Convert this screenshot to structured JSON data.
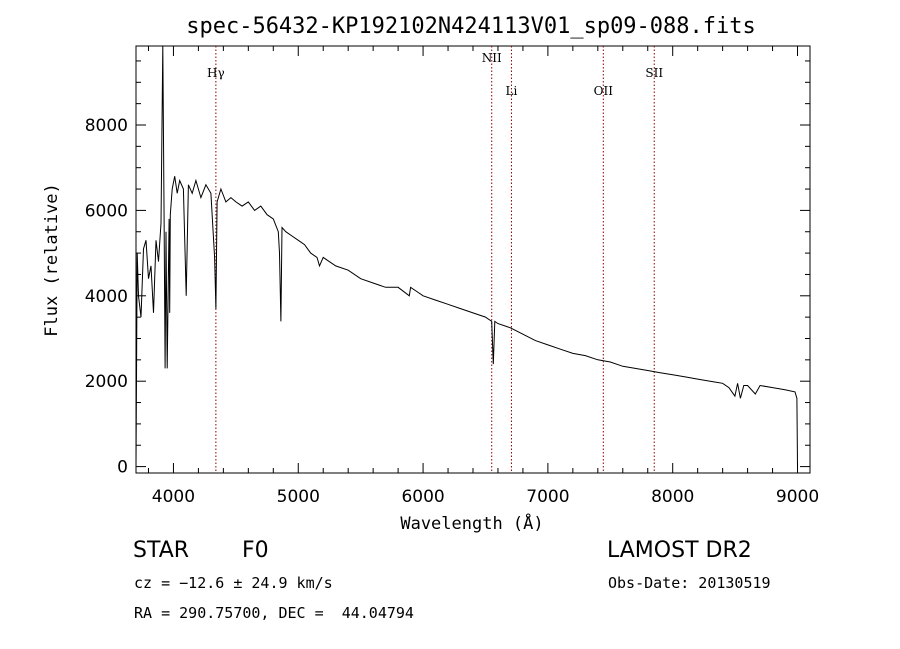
{
  "title": "spec-56432-KP192102N424113V01_sp09-088.fits",
  "chart_data": {
    "type": "line",
    "title": "spec-56432-KP192102N424113V01_sp09-088.fits",
    "xlabel": "Wavelength (Å)",
    "ylabel": "Flux (relative)",
    "xlim": [
      3700,
      9100
    ],
    "ylim": [
      -150,
      9850
    ],
    "xticks": [
      4000,
      5000,
      6000,
      7000,
      8000,
      9000
    ],
    "yticks": [
      0,
      2000,
      4000,
      6000,
      8000
    ],
    "grid": false,
    "series": [
      {
        "x": [
          3700,
          3710,
          3720,
          3740,
          3760,
          3780,
          3800,
          3820,
          3840,
          3860,
          3880,
          3900,
          3915,
          3925,
          3933,
          3940,
          3950,
          3965,
          3970,
          3975,
          3990,
          4010,
          4030,
          4050,
          4080,
          4102,
          4120,
          4150,
          4180,
          4220,
          4260,
          4300,
          4330,
          4340,
          4350,
          4380,
          4420,
          4460,
          4500,
          4550,
          4600,
          4650,
          4700,
          4750,
          4800,
          4840,
          4850,
          4861,
          4870,
          4900,
          4950,
          5000,
          5050,
          5100,
          5150,
          5170,
          5200,
          5300,
          5400,
          5500,
          5600,
          5700,
          5800,
          5890,
          5900,
          5950,
          6000,
          6100,
          6200,
          6300,
          6400,
          6500,
          6550,
          6563,
          6575,
          6600,
          6700,
          6800,
          6900,
          7000,
          7100,
          7200,
          7300,
          7400,
          7500,
          7600,
          7700,
          7800,
          7900,
          8000,
          8100,
          8200,
          8300,
          8400,
          8450,
          8498,
          8520,
          8542,
          8570,
          8600,
          8662,
          8700,
          8800,
          8900,
          8980,
          8995,
          9000
        ],
        "values": [
          0,
          5000,
          4000,
          3500,
          5100,
          5300,
          4400,
          4700,
          3600,
          5300,
          4800,
          5700,
          9900,
          5800,
          2300,
          5500,
          2300,
          5800,
          3600,
          5900,
          6500,
          6800,
          6400,
          6700,
          6500,
          4000,
          6600,
          6400,
          6700,
          6300,
          6600,
          6400,
          4900,
          3700,
          6200,
          6500,
          6200,
          6300,
          6200,
          6100,
          6200,
          6000,
          6100,
          5900,
          5800,
          5500,
          5000,
          3400,
          5600,
          5500,
          5400,
          5300,
          5200,
          5000,
          4900,
          4700,
          4900,
          4700,
          4600,
          4400,
          4300,
          4200,
          4200,
          4000,
          4200,
          4100,
          4000,
          3900,
          3800,
          3700,
          3600,
          3500,
          3400,
          2400,
          3400,
          3350,
          3250,
          3100,
          2950,
          2850,
          2750,
          2650,
          2600,
          2500,
          2450,
          2350,
          2300,
          2250,
          2200,
          2150,
          2100,
          2050,
          2000,
          1950,
          1850,
          1650,
          1950,
          1600,
          1900,
          1900,
          1700,
          1900,
          1850,
          1800,
          1750,
          1600,
          0
        ]
      }
    ],
    "line_markers": [
      {
        "label": "Hγ",
        "wavelength": 4340
      },
      {
        "label": "NII",
        "wavelength": 6550
      },
      {
        "label": "Li",
        "wavelength": 6708
      },
      {
        "label": "OII",
        "wavelength": 7444
      },
      {
        "label": "SII",
        "wavelength": 7852
      }
    ]
  },
  "info": {
    "object_class": "STAR",
    "subclass": "F0",
    "survey": "LAMOST DR2",
    "redshift": "cz = −12.6 ± 24.9 km/s",
    "obs_date": "Obs-Date: 20130519",
    "coords": "RA = 290.75700, DEC =  44.04794"
  }
}
